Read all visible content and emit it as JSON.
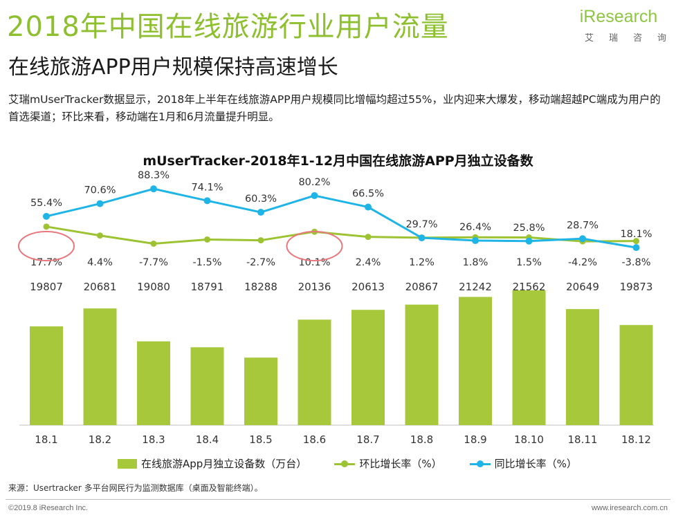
{
  "header": {
    "title": "2018年中国在线旅游行业用户流量",
    "subtitle": "在线旅游APP用户规模保持高速增长",
    "description": "艾瑞mUserTracker数据显示，2018年上半年在线旅游APP用户规模同比增幅均超过55%，业内迎来大爆发，移动端超越PC端成为用户的首选渠道；环比来看，移动端在1月和6月流量提升明显。",
    "logo_brand": "iResearch",
    "logo_sub": "艾瑞咨询"
  },
  "colors": {
    "bar": "#a7c83b",
    "mom_line": "#9dc332",
    "yoy_line": "#1fb4e6",
    "highlight_circle": "#e8777d",
    "brand_green": "#8dbf2e"
  },
  "chart_data": {
    "type": "bar",
    "title": "mUserTracker-2018年1-12月中国在线旅游APP月独立设备数",
    "categories": [
      "18.1",
      "18.2",
      "18.3",
      "18.4",
      "18.5",
      "18.6",
      "18.7",
      "18.8",
      "18.9",
      "18.10",
      "18.11",
      "18.12"
    ],
    "series": [
      {
        "name": "在线旅游App月独立设备数（万台）",
        "type": "bar",
        "values": [
          19807,
          20681,
          19080,
          18791,
          18288,
          20136,
          20613,
          20867,
          21242,
          21562,
          20649,
          19873
        ],
        "labels": [
          "19807",
          "20681",
          "19080",
          "18791",
          "18288",
          "20136",
          "20613",
          "20867",
          "21242",
          "21562",
          "20649",
          "19873"
        ]
      },
      {
        "name": "环比增长率（%）",
        "type": "line",
        "values": [
          17.7,
          4.4,
          -7.7,
          -1.5,
          -2.7,
          10.1,
          2.4,
          1.2,
          1.8,
          1.5,
          -4.2,
          -3.8
        ],
        "labels": [
          "17.7%",
          "4.4%",
          "-7.7%",
          "-1.5%",
          "-2.7%",
          "10.1%",
          "2.4%",
          "1.2%",
          "1.8%",
          "1.5%",
          "-4.2%",
          "-3.8%"
        ]
      },
      {
        "name": "同比增长率（%）",
        "type": "line",
        "values": [
          55.4,
          70.6,
          88.3,
          74.1,
          60.3,
          80.2,
          66.5,
          29.7,
          26.4,
          25.8,
          28.7,
          18.1
        ],
        "labels": [
          "55.4%",
          "70.6%",
          "88.3%",
          "74.1%",
          "60.3%",
          "80.2%",
          "66.5%",
          "29.7%",
          "26.4%",
          "25.8%",
          "28.7%",
          "18.1%"
        ]
      }
    ],
    "highlighted_categories": [
      "18.1",
      "18.6"
    ],
    "legend_position": "bottom",
    "grid": false
  },
  "footer": {
    "source": "来源：Usertracker 多平台网民行为监测数据库（桌面及智能终端）。",
    "copyright": "©2019.8 iResearch Inc.",
    "website": "www.iresearch.com.cn"
  }
}
